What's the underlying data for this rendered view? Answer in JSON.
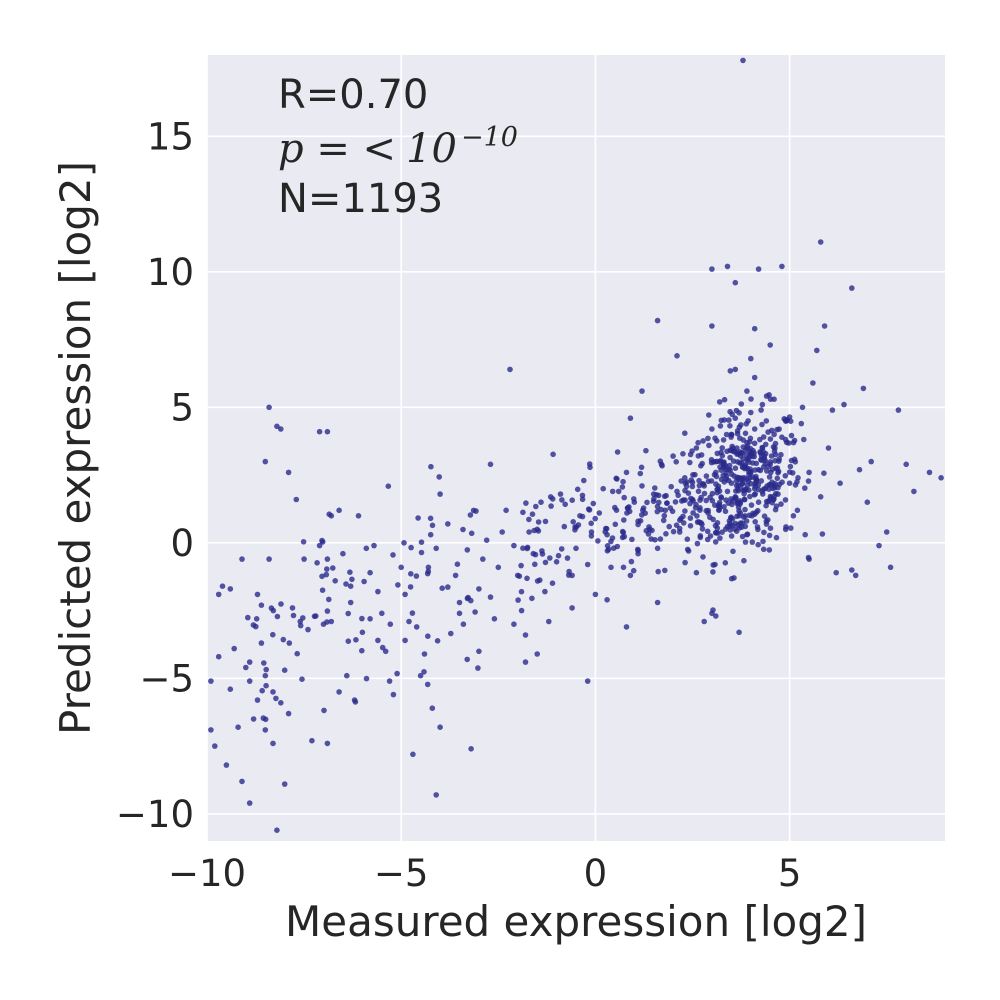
{
  "chart_data": {
    "type": "scatter",
    "title": "",
    "xlabel": "Measured expression [log2]",
    "ylabel": "Predicted expression [log2]",
    "xlim": [
      -10,
      9
    ],
    "ylim": [
      -11,
      18
    ],
    "xticks": [
      -10,
      -5,
      0,
      5
    ],
    "yticks": [
      -10,
      -5,
      0,
      5,
      10,
      15
    ],
    "xtick_labels": [
      "−10",
      "−5",
      "0",
      "5"
    ],
    "ytick_labels": [
      "−10",
      "−5",
      "0",
      "5",
      "10",
      "15"
    ],
    "grid": true,
    "background": "#eaeaf2",
    "point_color": "#2a2a8c",
    "annotations": {
      "r": "R=0.70",
      "p_prefix": "p = <",
      "p_base": "10",
      "p_exponent": "−10",
      "n": "N=1193"
    },
    "points": [
      [
        -9.9,
        -5.1
      ],
      [
        -9.7,
        -1.9
      ],
      [
        -9.6,
        -1.6
      ],
      [
        -9.4,
        -1.7
      ],
      [
        -9.1,
        -0.6
      ],
      [
        -9.0,
        -4.6
      ],
      [
        -8.9,
        -5.1
      ],
      [
        -8.7,
        -1.9
      ],
      [
        -8.6,
        -2.3
      ],
      [
        -8.4,
        -0.6
      ],
      [
        -9.8,
        -7.5
      ],
      [
        -9.5,
        -8.2
      ],
      [
        -9.2,
        -6.8
      ],
      [
        -8.8,
        -6.5
      ],
      [
        -8.5,
        -6.9
      ],
      [
        -8.3,
        -7.4
      ],
      [
        -9.1,
        -8.8
      ],
      [
        -8.9,
        -9.6
      ],
      [
        -8.2,
        -10.6
      ],
      [
        -8.0,
        -8.9
      ],
      [
        -9.7,
        -4.2
      ],
      [
        -9.3,
        -3.9
      ],
      [
        -8.9,
        -4.4
      ],
      [
        -8.6,
        -3.7
      ],
      [
        -8.5,
        -4.9
      ],
      [
        -8.3,
        -5.5
      ],
      [
        -8.1,
        -5.9
      ],
      [
        -7.9,
        -6.3
      ],
      [
        -8.2,
        4.3
      ],
      [
        -8.1,
        4.2
      ],
      [
        -8.5,
        3.0
      ],
      [
        -8.4,
        5.0
      ],
      [
        -7.9,
        2.6
      ],
      [
        -7.7,
        1.6
      ],
      [
        -7.8,
        -2.4
      ],
      [
        -7.6,
        -2.9
      ],
      [
        -7.4,
        -3.2
      ],
      [
        -7.2,
        -2.7
      ],
      [
        -7.0,
        -3.0
      ],
      [
        -7.1,
        4.1
      ],
      [
        -6.9,
        4.1
      ],
      [
        -6.8,
        1.0
      ],
      [
        -6.6,
        1.2
      ],
      [
        -6.9,
        -0.6
      ],
      [
        -7.1,
        -0.1
      ],
      [
        -6.7,
        -1.4
      ],
      [
        -6.5,
        -0.4
      ],
      [
        -6.3,
        -1.6
      ],
      [
        -6.4,
        -4.9
      ],
      [
        -6.6,
        -5.5
      ],
      [
        -6.2,
        -5.8
      ],
      [
        -6.0,
        -3.3
      ],
      [
        -6.1,
        1.0
      ],
      [
        -5.9,
        -0.2
      ],
      [
        -5.8,
        -1.1
      ],
      [
        -5.6,
        -1.8
      ],
      [
        -5.5,
        -2.6
      ],
      [
        -5.4,
        -4.0
      ],
      [
        -5.3,
        -5.1
      ],
      [
        -5.2,
        -5.6
      ],
      [
        -5.8,
        -2.8
      ],
      [
        -5.6,
        -3.6
      ],
      [
        -5.0,
        -0.9
      ],
      [
        -4.9,
        -1.9
      ],
      [
        -4.8,
        -2.9
      ],
      [
        -4.6,
        -3.1
      ],
      [
        -4.4,
        -4.1
      ],
      [
        -4.2,
        -6.1
      ],
      [
        -4.0,
        -6.8
      ],
      [
        -4.1,
        -9.3
      ],
      [
        -4.7,
        -7.8
      ],
      [
        -4.5,
        -4.9
      ],
      [
        -4.3,
        -0.9
      ],
      [
        -4.1,
        -0.2
      ],
      [
        -4.0,
        1.8
      ],
      [
        -3.8,
        0.7
      ],
      [
        -3.6,
        -1.2
      ],
      [
        -3.5,
        -2.2
      ],
      [
        -3.4,
        -3.0
      ],
      [
        -3.3,
        -4.3
      ],
      [
        -3.2,
        -7.6
      ],
      [
        -3.0,
        -1.7
      ],
      [
        -2.9,
        -0.6
      ],
      [
        -2.8,
        0.1
      ],
      [
        -2.7,
        -2.0
      ],
      [
        -2.6,
        -2.8
      ],
      [
        -2.5,
        -0.9
      ],
      [
        -2.4,
        0.4
      ],
      [
        -2.2,
        6.4
      ],
      [
        -2.7,
        2.9
      ],
      [
        -2.3,
        1.2
      ],
      [
        -2.1,
        -0.1
      ],
      [
        -2.0,
        -1.2
      ],
      [
        -1.9,
        -2.5
      ],
      [
        -1.8,
        -3.4
      ],
      [
        -1.6,
        -0.4
      ],
      [
        -1.5,
        0.5
      ],
      [
        -1.4,
        1.5
      ],
      [
        -1.3,
        -1.8
      ],
      [
        -1.2,
        -2.9
      ],
      [
        -1.0,
        -0.7
      ],
      [
        -0.9,
        1.8
      ],
      [
        -0.8,
        0.6
      ],
      [
        -0.6,
        -1.2
      ],
      [
        -0.5,
        -0.2
      ],
      [
        -0.4,
        1.0
      ],
      [
        -0.3,
        2.3
      ],
      [
        -0.2,
        -0.8
      ],
      [
        -0.1,
        0.4
      ],
      [
        0.0,
        -1.9
      ],
      [
        -0.2,
        -5.1
      ],
      [
        0.1,
        1.1
      ],
      [
        0.2,
        2.0
      ],
      [
        0.3,
        0.3
      ],
      [
        0.4,
        -0.9
      ],
      [
        0.5,
        1.3
      ],
      [
        0.6,
        1.9
      ],
      [
        0.7,
        0.2
      ],
      [
        0.8,
        2.6
      ],
      [
        0.9,
        -1.2
      ],
      [
        1.0,
        1.5
      ],
      [
        1.1,
        0.8
      ],
      [
        1.2,
        2.1
      ],
      [
        1.3,
        3.4
      ],
      [
        1.4,
        0.5
      ],
      [
        1.5,
        1.8
      ],
      [
        1.6,
        -0.2
      ],
      [
        1.7,
        2.9
      ],
      [
        1.8,
        1.2
      ],
      [
        1.9,
        0.6
      ],
      [
        2.0,
        3.2
      ],
      [
        2.1,
        1.9
      ],
      [
        2.2,
        0.9
      ],
      [
        2.3,
        2.4
      ],
      [
        2.4,
        -0.3
      ],
      [
        2.5,
        1.6
      ],
      [
        2.6,
        3.5
      ],
      [
        2.7,
        0.2
      ],
      [
        2.8,
        2.1
      ],
      [
        2.9,
        1.1
      ],
      [
        1.6,
        8.2
      ],
      [
        2.1,
        6.9
      ],
      [
        1.2,
        5.6
      ],
      [
        0.9,
        4.6
      ],
      [
        -1.5,
        -4.1
      ],
      [
        -1.8,
        -4.4
      ],
      [
        0.8,
        -3.1
      ],
      [
        1.6,
        -2.2
      ],
      [
        2.8,
        -2.9
      ],
      [
        3.0,
        -2.6
      ],
      [
        3.0,
        10.1
      ],
      [
        3.4,
        10.2
      ],
      [
        3.6,
        9.6
      ],
      [
        4.2,
        10.1
      ],
      [
        4.8,
        10.2
      ],
      [
        5.8,
        11.1
      ],
      [
        6.6,
        9.4
      ],
      [
        3.0,
        8.0
      ],
      [
        4.1,
        7.9
      ],
      [
        4.5,
        7.3
      ],
      [
        3.0,
        4.2
      ],
      [
        3.1,
        2.6
      ],
      [
        3.2,
        1.3
      ],
      [
        3.3,
        3.8
      ],
      [
        3.4,
        0.6
      ],
      [
        3.5,
        2.2
      ],
      [
        3.6,
        4.6
      ],
      [
        3.7,
        1.0
      ],
      [
        3.8,
        3.1
      ],
      [
        3.9,
        0.3
      ],
      [
        4.0,
        2.6
      ],
      [
        4.1,
        4.2
      ],
      [
        4.2,
        1.5
      ],
      [
        4.3,
        3.5
      ],
      [
        4.4,
        0.8
      ],
      [
        4.5,
        2.9
      ],
      [
        4.6,
        5.3
      ],
      [
        4.7,
        1.8
      ],
      [
        4.8,
        3.9
      ],
      [
        4.9,
        0.5
      ],
      [
        3.3,
        2.9
      ],
      [
        3.5,
        3.4
      ],
      [
        3.7,
        2.4
      ],
      [
        3.9,
        3.7
      ],
      [
        4.1,
        2.0
      ],
      [
        3.6,
        1.7
      ],
      [
        3.8,
        2.8
      ],
      [
        4.0,
        3.3
      ],
      [
        3.4,
        1.9
      ],
      [
        4.2,
        2.7
      ],
      [
        3.5,
        4.0
      ],
      [
        3.7,
        4.8
      ],
      [
        3.9,
        5.6
      ],
      [
        4.1,
        6.1
      ],
      [
        4.3,
        5.1
      ],
      [
        3.6,
        6.4
      ],
      [
        4.0,
        6.8
      ],
      [
        4.4,
        4.5
      ],
      [
        3.2,
        5.2
      ],
      [
        4.6,
        4.0
      ],
      [
        5.0,
        2.2
      ],
      [
        5.1,
        3.7
      ],
      [
        5.2,
        1.2
      ],
      [
        5.3,
        4.4
      ],
      [
        5.4,
        0.3
      ],
      [
        5.5,
        2.6
      ],
      [
        5.6,
        5.9
      ],
      [
        5.7,
        7.1
      ],
      [
        5.9,
        8.0
      ],
      [
        5.8,
        1.7
      ],
      [
        6.0,
        3.5
      ],
      [
        6.1,
        4.9
      ],
      [
        6.3,
        2.2
      ],
      [
        6.4,
        5.1
      ],
      [
        6.6,
        -1.0
      ],
      [
        6.7,
        -1.2
      ],
      [
        6.8,
        2.7
      ],
      [
        7.0,
        1.5
      ],
      [
        7.1,
        3.0
      ],
      [
        7.3,
        -0.1
      ],
      [
        7.5,
        0.4
      ],
      [
        7.8,
        4.9
      ],
      [
        8.0,
        2.9
      ],
      [
        8.2,
        1.9
      ],
      [
        8.6,
        2.6
      ],
      [
        8.9,
        2.4
      ],
      [
        7.6,
        -0.9
      ],
      [
        6.9,
        5.7
      ],
      [
        6.2,
        -1.1
      ],
      [
        5.5,
        -0.6
      ],
      [
        3.7,
        -3.3
      ],
      [
        3.1,
        -2.7
      ],
      [
        2.6,
        -1.1
      ],
      [
        1.1,
        -0.4
      ],
      [
        0.3,
        -2.1
      ],
      [
        -0.6,
        -2.4
      ],
      [
        -3.5,
        -2.6
      ],
      [
        -3.0,
        -4.0
      ],
      [
        -2.1,
        -3.0
      ],
      [
        -4.9,
        -3.6
      ],
      [
        -5.7,
        -0.1
      ],
      [
        -6.3,
        -2.2
      ],
      [
        -6.8,
        -2.9
      ],
      [
        -7.5,
        -0.6
      ],
      [
        -8.0,
        -4.7
      ],
      [
        -8.7,
        -5.8
      ],
      [
        -9.4,
        -5.4
      ],
      [
        -9.9,
        -6.9
      ],
      [
        -7.3,
        -7.3
      ],
      [
        -6.9,
        -7.4
      ],
      [
        3.8,
        17.8
      ]
    ]
  }
}
